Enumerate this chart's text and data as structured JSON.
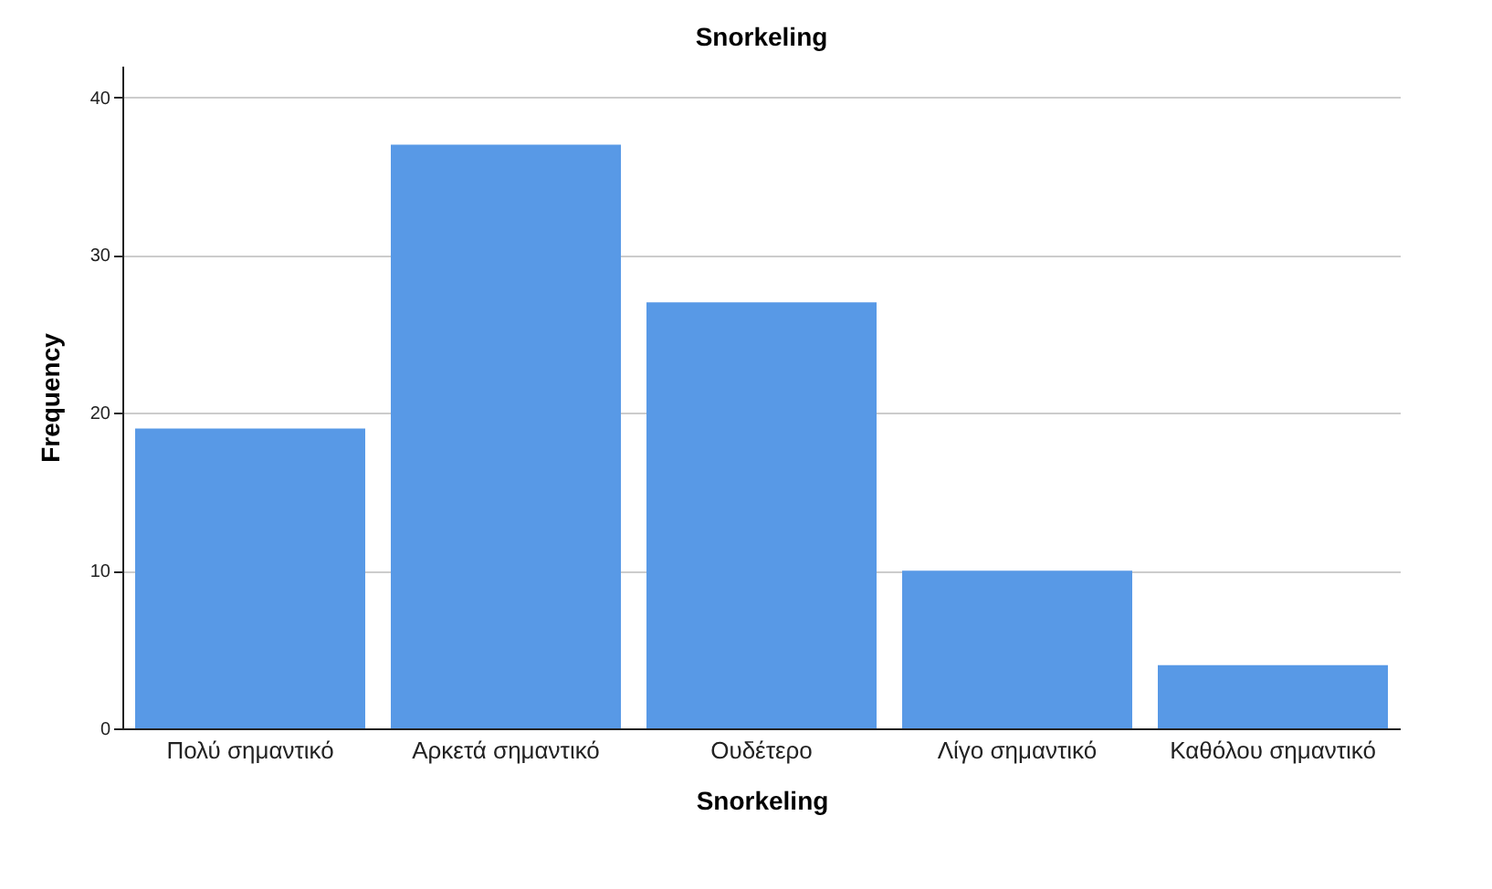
{
  "chart_data": {
    "type": "bar",
    "title": "Snorkeling",
    "xlabel": "Snorkeling",
    "ylabel": "Frequency",
    "categories": [
      "Πολύ σημαντικό",
      "Αρκετά σημαντικό",
      "Ουδέτερο",
      "Λίγο σημαντικό",
      "Καθόλου σημαντικό"
    ],
    "values": [
      19,
      37,
      27,
      10,
      4
    ],
    "color": "#5899e6",
    "ylim": [
      0,
      42
    ],
    "yticks": [
      0,
      10,
      20,
      30,
      40
    ],
    "grid": "y"
  }
}
